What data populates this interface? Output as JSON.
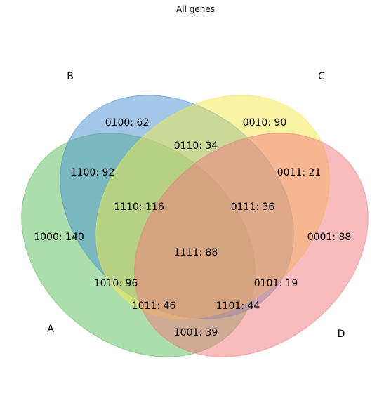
{
  "chart_data": {
    "type": "venn",
    "title": "All genes",
    "sets": [
      {
        "name": "A",
        "color": "#5cbd5c"
      },
      {
        "name": "B",
        "color": "#4a8fd0"
      },
      {
        "name": "C",
        "color": "#f2ea4a"
      },
      {
        "name": "D",
        "color": "#f2787e"
      }
    ],
    "regions": [
      {
        "key": "1000",
        "value": 140,
        "label": "1000: 140"
      },
      {
        "key": "0100",
        "value": 62,
        "label": "0100: 62"
      },
      {
        "key": "0010",
        "value": 90,
        "label": "0010: 90"
      },
      {
        "key": "0001",
        "value": 88,
        "label": "0001: 88"
      },
      {
        "key": "1100",
        "value": 92,
        "label": "1100: 92"
      },
      {
        "key": "0110",
        "value": 34,
        "label": "0110: 34"
      },
      {
        "key": "0011",
        "value": 21,
        "label": "0011: 21"
      },
      {
        "key": "1110",
        "value": 116,
        "label": "1110: 116"
      },
      {
        "key": "0111",
        "value": 36,
        "label": "0111: 36"
      },
      {
        "key": "1111",
        "value": 88,
        "label": "1111: 88"
      },
      {
        "key": "1010",
        "value": 96,
        "label": "1010: 96"
      },
      {
        "key": "0101",
        "value": 19,
        "label": "0101: 19"
      },
      {
        "key": "1011",
        "value": 46,
        "label": "1011: 46"
      },
      {
        "key": "1101",
        "value": 44,
        "label": "1101: 44"
      },
      {
        "key": "1001",
        "value": 39,
        "label": "1001: 39"
      }
    ]
  }
}
